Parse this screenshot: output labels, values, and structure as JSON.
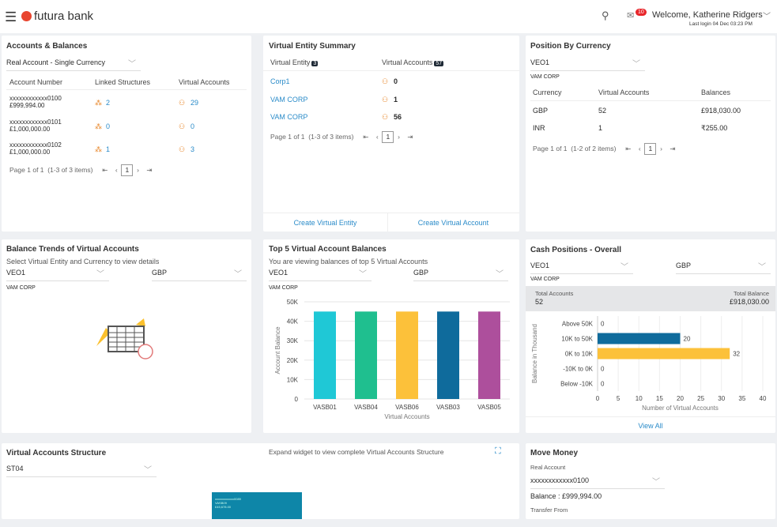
{
  "header": {
    "brand": "futura bank",
    "welcome": "Welcome, Katherine Ridgers",
    "last_login": "Last login 04 Dec 03:23 PM",
    "mail_count": "10",
    "icons": [
      "hamburger-icon",
      "search-icon",
      "mail-icon",
      "chevron-down-icon"
    ]
  },
  "accounts": {
    "title": "Accounts & Balances",
    "dropdown": "Real Account - Single Currency",
    "columns": [
      "Account Number",
      "Linked Structures",
      "Virtual Accounts"
    ],
    "rows": [
      {
        "account": "xxxxxxxxxxxx0100",
        "balance": "£999,994.00",
        "linked": "2",
        "virtual": "29"
      },
      {
        "account": "xxxxxxxxxxxx0101",
        "balance": "£1,000,000.00",
        "linked": "0",
        "virtual": "0"
      },
      {
        "account": "xxxxxxxxxxxx0102",
        "balance": "£1,000,000.00",
        "linked": "1",
        "virtual": "3"
      }
    ],
    "pager": {
      "page_label": "Page",
      "page": "1",
      "of": "of 1",
      "items": "(1-3 of 3 items)",
      "current": "1"
    }
  },
  "entity": {
    "title": "Virtual Entity Summary",
    "col1": "Virtual Entity",
    "col1_count": "3",
    "col2": "Virtual Accounts",
    "col2_count": "57",
    "rows": [
      {
        "name": "Corp1",
        "count": "0"
      },
      {
        "name": "VAM CORP",
        "count": "1"
      },
      {
        "name": "VAM CORP",
        "count": "56"
      }
    ],
    "pager": {
      "page_label": "Page",
      "page": "1",
      "of": "of 1",
      "items": "(1-3 of 3 items)",
      "current": "1"
    },
    "create_entity": "Create Virtual Entity",
    "create_account": "Create Virtual Account"
  },
  "position": {
    "title": "Position By Currency",
    "dropdown": "VEO1",
    "sub": "VAM CORP",
    "columns": [
      "Currency",
      "Virtual Accounts",
      "Balances"
    ],
    "rows": [
      {
        "currency": "GBP",
        "accounts": "52",
        "balance": "£918,030.00"
      },
      {
        "currency": "INR",
        "accounts": "1",
        "balance": "₹255.00"
      }
    ],
    "pager": {
      "page_label": "Page",
      "page": "1",
      "of": "of 1",
      "items": "(1-2 of 2 items)",
      "current": "1"
    }
  },
  "trends": {
    "title": "Balance Trends of Virtual Accounts",
    "subtitle": "Select Virtual Entity and Currency to view details",
    "entity": "VEO1",
    "currency": "GBP",
    "sub": "VAM CORP"
  },
  "top5": {
    "title": "Top 5 Virtual Account Balances",
    "subtitle": "You are viewing balances of top 5 Virtual Accounts",
    "entity": "VEO1",
    "currency": "GBP",
    "sub": "VAM CORP"
  },
  "cash": {
    "title": "Cash Positions - Overall",
    "entity": "VEO1",
    "currency": "GBP",
    "sub": "VAM CORP",
    "total_accounts_label": "Total Accounts",
    "total_accounts": "52",
    "total_balance_label": "Total Balance",
    "total_balance": "£918,030.00",
    "view_all": "View All"
  },
  "structure": {
    "title": "Virtual Accounts Structure",
    "dropdown": "ST04",
    "hint": "Expand widget to view complete Virtual Accounts Structure",
    "node": [
      "xxxxxxxxxxxx0089",
      "VASB09",
      "£45,678.00"
    ]
  },
  "move": {
    "title": "Move Money",
    "real_account_label": "Real Account",
    "account": "xxxxxxxxxxxx0100",
    "balance": "Balance : £999,994.00",
    "transfer_from": "Transfer From"
  },
  "chart_data": [
    {
      "type": "bar",
      "categories": [
        "VASB01",
        "VASB04",
        "VASB06",
        "VASB03",
        "VASB05"
      ],
      "values": [
        45000,
        45000,
        45000,
        45000,
        45000
      ],
      "xlabel": "Virtual Accounts",
      "ylabel": "Account Balance",
      "ylim": [
        0,
        50000
      ],
      "yticks": [
        "0",
        "10K",
        "20K",
        "30K",
        "40K",
        "50K"
      ],
      "colors": [
        "#1fc8d6",
        "#1fbf8f",
        "#fcc13a",
        "#0f6b9c",
        "#ad4f9c"
      ],
      "grid": true
    },
    {
      "type": "bar",
      "orientation": "horizontal",
      "categories": [
        "Above 50K",
        "10K to 50K",
        "0K to 10K",
        "-10K to 0K",
        "Below -10K"
      ],
      "values": [
        0,
        20,
        32,
        0,
        0
      ],
      "xlabel": "Number of Virtual Accounts",
      "ylabel": "Balance in Thousand",
      "xlim": [
        0,
        40
      ],
      "xticks": [
        "0",
        "5",
        "10",
        "15",
        "20",
        "25",
        "30",
        "35",
        "40"
      ],
      "colors": [
        "#0f6b9c",
        "#0f6b9c",
        "#fcc13a",
        "#0f6b9c",
        "#0f6b9c"
      ],
      "grid": true
    }
  ]
}
